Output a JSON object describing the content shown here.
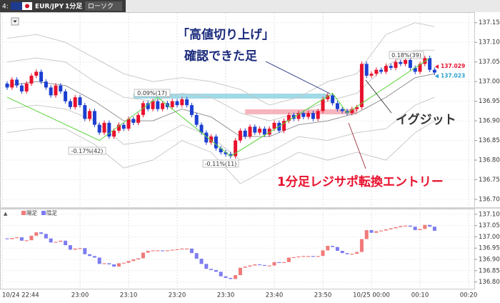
{
  "toolbar": {
    "index": "4:",
    "symbol": "EUR/JPY",
    "timeframe": "1分足",
    "chart_style": "ローソク"
  },
  "chart_data": [
    {
      "type": "candlestick",
      "up_color": "#e8112d",
      "down_color": "#1c3fd1",
      "ylim": [
        136.68,
        137.175
      ],
      "yticks": [
        {
          "value": 136.7,
          "label": "136.70"
        },
        136.75,
        {
          "value": 136.8,
          "label": "136.80"
        },
        136.85,
        {
          "value": 136.9,
          "label": "136.90"
        },
        136.95,
        {
          "value": 137.0,
          "label": "137.00"
        },
        137.05,
        {
          "value": 137.1,
          "label": "137.10"
        },
        137.15
      ],
      "grid": true,
      "x": [
        "22:45",
        "22:46",
        "22:47",
        "22:48",
        "22:49",
        "22:50",
        "22:51",
        "22:52",
        "22:53",
        "22:54",
        "22:55",
        "22:56",
        "22:57",
        "22:58",
        "22:59",
        "23:00",
        "23:01",
        "23:02",
        "23:03",
        "23:04",
        "23:05",
        "23:06",
        "23:07",
        "23:08",
        "23:09",
        "23:10",
        "23:11",
        "23:12",
        "23:13",
        "23:14",
        "23:15",
        "23:16",
        "23:17",
        "23:18",
        "23:19",
        "23:20",
        "23:21",
        "23:22",
        "23:23",
        "23:24",
        "23:25",
        "23:26",
        "23:27",
        "23:28",
        "23:29",
        "23:30",
        "23:31",
        "23:32",
        "23:33",
        "23:34",
        "23:35",
        "23:36",
        "23:37",
        "23:38",
        "23:39",
        "23:40",
        "23:41",
        "23:42",
        "23:43",
        "23:44",
        "23:45",
        "23:46",
        "23:47",
        "23:48",
        "23:49",
        "23:50",
        "23:51",
        "23:52",
        "23:53",
        "23:54",
        "23:55",
        "23:56",
        "23:57",
        "23:58",
        "23:59",
        "00:00",
        "00:01",
        "00:02",
        "00:03",
        "00:04",
        "00:05",
        "00:06",
        "00:07",
        "00:08",
        "00:09",
        "00:10",
        "00:11",
        "00:12",
        "00:13"
      ],
      "ohlc": [
        [
          136.995,
          137.001,
          136.979,
          136.985
        ],
        [
          136.985,
          137.011,
          136.979,
          137.005
        ],
        [
          137.005,
          137.011,
          136.984,
          136.99
        ],
        [
          136.99,
          136.996,
          136.969,
          136.975
        ],
        [
          136.975,
          137.001,
          136.969,
          136.995
        ],
        [
          136.995,
          137.021,
          136.989,
          137.015
        ],
        [
          137.015,
          137.031,
          137.009,
          137.025
        ],
        [
          137.025,
          137.031,
          136.994,
          137.0
        ],
        [
          137.0,
          137.006,
          136.979,
          136.985
        ],
        [
          136.985,
          136.991,
          136.959,
          136.965
        ],
        [
          136.965,
          136.996,
          136.959,
          136.99
        ],
        [
          136.99,
          136.996,
          136.969,
          136.975
        ],
        [
          136.975,
          136.981,
          136.944,
          136.95
        ],
        [
          136.95,
          136.956,
          136.929,
          136.935
        ],
        [
          136.935,
          136.966,
          136.929,
          136.96
        ],
        [
          136.96,
          136.966,
          136.934,
          136.94
        ],
        [
          136.94,
          136.946,
          136.899,
          136.905
        ],
        [
          136.905,
          136.931,
          136.899,
          136.925
        ],
        [
          136.925,
          136.931,
          136.884,
          136.89
        ],
        [
          136.89,
          136.896,
          136.864,
          136.87
        ],
        [
          136.87,
          136.901,
          136.864,
          136.895
        ],
        [
          136.895,
          136.901,
          136.854,
          136.86
        ],
        [
          136.86,
          136.881,
          136.854,
          136.875
        ],
        [
          136.875,
          136.896,
          136.869,
          136.89
        ],
        [
          136.89,
          136.896,
          136.874,
          136.88
        ],
        [
          136.88,
          136.911,
          136.874,
          136.905
        ],
        [
          136.905,
          136.911,
          136.889,
          136.895
        ],
        [
          136.895,
          136.921,
          136.889,
          136.915
        ],
        [
          136.915,
          136.951,
          136.909,
          136.945
        ],
        [
          136.945,
          136.951,
          136.924,
          136.93
        ],
        [
          136.93,
          136.956,
          136.924,
          136.95
        ],
        [
          136.95,
          136.956,
          136.924,
          136.93
        ],
        [
          136.93,
          136.951,
          136.924,
          136.945
        ],
        [
          136.945,
          136.951,
          136.929,
          136.935
        ],
        [
          136.935,
          136.956,
          136.929,
          136.95
        ],
        [
          136.95,
          136.956,
          136.934,
          136.94
        ],
        [
          136.94,
          136.961,
          136.934,
          136.955
        ],
        [
          136.955,
          136.961,
          136.934,
          136.94
        ],
        [
          136.94,
          136.946,
          136.909,
          136.915
        ],
        [
          136.915,
          136.921,
          136.884,
          136.89
        ],
        [
          136.89,
          136.896,
          136.864,
          136.87
        ],
        [
          136.87,
          136.876,
          136.839,
          136.845
        ],
        [
          136.845,
          136.866,
          136.839,
          136.86
        ],
        [
          136.86,
          136.866,
          136.824,
          136.83
        ],
        [
          136.83,
          136.836,
          136.814,
          136.82
        ],
        [
          136.82,
          136.826,
          136.809,
          136.815
        ],
        [
          136.815,
          136.821,
          136.804,
          136.81
        ],
        [
          136.81,
          136.856,
          136.804,
          136.85
        ],
        [
          136.85,
          136.881,
          136.844,
          136.875
        ],
        [
          136.875,
          136.881,
          136.854,
          136.86
        ],
        [
          136.86,
          136.891,
          136.854,
          136.885
        ],
        [
          136.885,
          136.891,
          136.864,
          136.87
        ],
        [
          136.87,
          136.886,
          136.864,
          136.88
        ],
        [
          136.88,
          136.886,
          136.859,
          136.865
        ],
        [
          136.865,
          136.886,
          136.859,
          136.88
        ],
        [
          136.88,
          136.901,
          136.874,
          136.895
        ],
        [
          136.895,
          136.901,
          136.869,
          136.875
        ],
        [
          136.875,
          136.906,
          136.869,
          136.9
        ],
        [
          136.9,
          136.921,
          136.894,
          136.915
        ],
        [
          136.915,
          136.921,
          136.899,
          136.905
        ],
        [
          136.905,
          136.926,
          136.899,
          136.92
        ],
        [
          136.92,
          136.926,
          136.904,
          136.91
        ],
        [
          136.91,
          136.926,
          136.904,
          136.92
        ],
        [
          136.92,
          136.926,
          136.899,
          136.905
        ],
        [
          136.905,
          136.931,
          136.899,
          136.925
        ],
        [
          136.925,
          136.961,
          136.919,
          136.955
        ],
        [
          136.955,
          136.971,
          136.949,
          136.965
        ],
        [
          136.965,
          136.971,
          136.939,
          136.945
        ],
        [
          136.945,
          136.951,
          136.924,
          136.93
        ],
        [
          136.93,
          136.936,
          136.919,
          136.925
        ],
        [
          136.925,
          136.931,
          136.914,
          136.92
        ],
        [
          136.92,
          136.936,
          136.914,
          136.93
        ],
        [
          136.93,
          136.941,
          136.924,
          136.935
        ],
        [
          136.935,
          137.051,
          136.929,
          137.045
        ],
        [
          137.045,
          137.051,
          137.009,
          137.015
        ],
        [
          137.015,
          137.026,
          137.009,
          137.02
        ],
        [
          137.02,
          137.036,
          137.014,
          137.03
        ],
        [
          137.03,
          137.036,
          137.019,
          137.025
        ],
        [
          137.025,
          137.046,
          137.019,
          137.04
        ],
        [
          137.04,
          137.046,
          137.029,
          137.035
        ],
        [
          137.035,
          137.056,
          137.029,
          137.05
        ],
        [
          137.05,
          137.056,
          137.039,
          137.045
        ],
        [
          137.045,
          137.061,
          137.039,
          137.055
        ],
        [
          137.055,
          137.061,
          137.029,
          137.035
        ],
        [
          137.035,
          137.041,
          137.019,
          137.025
        ],
        [
          137.025,
          137.051,
          137.019,
          137.045
        ],
        [
          137.045,
          137.066,
          137.039,
          137.06
        ],
        [
          137.06,
          137.066,
          137.024,
          137.03
        ],
        [
          137.03,
          137.036,
          137.017,
          137.023
        ]
      ],
      "line_x": [
        "22:45",
        "22:51",
        "22:57",
        "23:03",
        "23:09",
        "23:15",
        "23:21",
        "23:27",
        "23:33",
        "23:39",
        "23:45",
        "23:51",
        "23:57",
        "00:03",
        "00:09",
        "00:13"
      ],
      "lines": [
        {
          "color": "#888888",
          "values": [
            136.99,
            137.0,
            136.99,
            136.95,
            136.9,
            136.9,
            136.93,
            136.91,
            136.86,
            136.86,
            136.89,
            136.9,
            136.92,
            136.96,
            137.01,
            137.02
          ]
        },
        {
          "color": "#c4c4c4",
          "values": [
            137.11,
            137.12,
            137.1,
            137.06,
            137.02,
            137.0,
            137.01,
            137.0,
            136.98,
            136.94,
            136.96,
            137.0,
            137.02,
            137.12,
            137.15,
            137.14
          ]
        },
        {
          "color": "#c4c4c4",
          "values": [
            137.05,
            137.06,
            137.05,
            137.0,
            136.96,
            136.95,
            136.97,
            136.96,
            136.92,
            136.9,
            136.92,
            136.95,
            136.97,
            137.04,
            137.08,
            137.08
          ]
        },
        {
          "color": "#c4c4c4",
          "values": [
            136.93,
            136.94,
            136.93,
            136.9,
            136.84,
            136.85,
            136.89,
            136.86,
            136.8,
            136.82,
            136.86,
            136.85,
            136.87,
            136.88,
            136.94,
            136.96
          ]
        },
        {
          "color": "#c4c4c4",
          "values": [
            136.87,
            136.88,
            136.88,
            136.84,
            136.78,
            136.8,
            136.85,
            136.82,
            136.74,
            136.78,
            136.82,
            136.8,
            136.82,
            136.8,
            136.87,
            136.9
          ]
        }
      ],
      "zigzag": {
        "color": "#5bd23c",
        "x": [
          "22:45",
          "23:04",
          "23:16",
          "23:31",
          "23:52",
          "23:55",
          "00:12"
        ],
        "values": [
          136.96,
          136.85,
          136.96,
          136.81,
          136.97,
          136.92,
          137.06
        ]
      },
      "levels": [
        {
          "color": "#8fd3e3",
          "value": 136.963,
          "x": [
            "23:11",
            "23:51"
          ]
        },
        {
          "color": "#f5a8b2",
          "value": 136.923,
          "x": [
            "23:34",
            "23:57"
          ]
        }
      ],
      "price_markers": [
        {
          "color": "#e8112d",
          "value": 137.029
        },
        {
          "color": "#2a9fd0",
          "value": 137.023
        }
      ],
      "swing_labels": [
        "0.09%(17)",
        "-0.17%(42)",
        "-0.11%(11)",
        "0.18%(39)"
      ],
      "annotations": [
        "「高値切り上げ」",
        "確認できた足",
        "イグジット",
        "1分足レジサポ転換エントリー"
      ]
    },
    {
      "type": "heikin_ashi",
      "series": [
        {
          "name": "陽足",
          "color": "#f07a7a"
        },
        {
          "name": "陰足",
          "color": "#7d7cf0"
        }
      ],
      "ylim": [
        136.77,
        137.125
      ],
      "yticks": [
        {
          "value": 136.8,
          "label": "136.80"
        },
        136.85,
        {
          "value": 136.9,
          "label": "136.90"
        },
        136.95,
        {
          "value": 137.0,
          "label": "137.00"
        },
        137.05,
        {
          "value": 137.1,
          "label": "137.10"
        }
      ],
      "xticks": [
        {
          "value": "22:44",
          "label": "10/24 22:44"
        },
        "23:00",
        "23:10",
        "23:20",
        "23:30",
        "23:40",
        "23:50",
        {
          "value": "00:00",
          "label": "10/25 00:00"
        },
        "00:10",
        "00:20"
      ],
      "open": [
        136.993,
        136.99,
        136.995,
        136.998,
        136.983,
        136.985,
        137.005,
        137.02,
        137.013,
        136.993,
        136.975,
        136.978,
        136.983,
        136.963,
        136.943,
        136.948,
        136.95,
        136.923,
        136.915,
        136.908,
        136.88,
        136.883,
        136.878,
        136.868,
        136.883,
        136.885,
        136.893,
        136.9,
        136.905,
        136.93,
        136.938,
        136.94,
        136.94,
        136.938,
        136.94,
        136.943,
        136.945,
        136.948,
        136.948,
        136.928,
        136.903,
        136.88,
        136.858,
        136.853,
        136.845,
        136.825,
        136.818,
        136.813,
        136.83,
        136.863,
        136.868,
        136.873,
        136.878,
        136.875,
        136.873,
        136.873,
        136.888,
        136.885,
        136.888,
        136.908,
        136.91,
        136.913,
        136.915,
        136.915,
        136.913,
        136.915,
        136.94,
        136.96,
        136.955,
        136.938,
        136.928,
        136.923,
        136.925,
        136.933,
        136.99,
        137.03,
        137.018,
        137.025,
        137.028,
        137.033,
        137.038,
        137.043,
        137.048,
        137.05,
        137.045,
        137.03,
        137.035,
        137.053,
        137.045
      ],
      "close": [
        136.99,
        136.995,
        136.998,
        136.983,
        136.985,
        137.005,
        137.02,
        137.013,
        136.993,
        136.975,
        136.978,
        136.983,
        136.963,
        136.943,
        136.948,
        136.95,
        136.923,
        136.915,
        136.908,
        136.88,
        136.883,
        136.878,
        136.868,
        136.883,
        136.885,
        136.893,
        136.9,
        136.905,
        136.93,
        136.938,
        136.94,
        136.94,
        136.938,
        136.94,
        136.943,
        136.945,
        136.948,
        136.948,
        136.928,
        136.903,
        136.88,
        136.858,
        136.853,
        136.845,
        136.825,
        136.818,
        136.813,
        136.83,
        136.863,
        136.868,
        136.873,
        136.878,
        136.875,
        136.873,
        136.873,
        136.888,
        136.885,
        136.888,
        136.908,
        136.91,
        136.913,
        136.915,
        136.915,
        136.913,
        136.915,
        136.94,
        136.96,
        136.955,
        136.938,
        136.928,
        136.923,
        136.925,
        136.933,
        136.99,
        137.03,
        137.018,
        137.025,
        137.028,
        137.033,
        137.038,
        137.043,
        137.048,
        137.05,
        137.045,
        137.03,
        137.035,
        137.053,
        137.045,
        137.027
      ]
    }
  ]
}
